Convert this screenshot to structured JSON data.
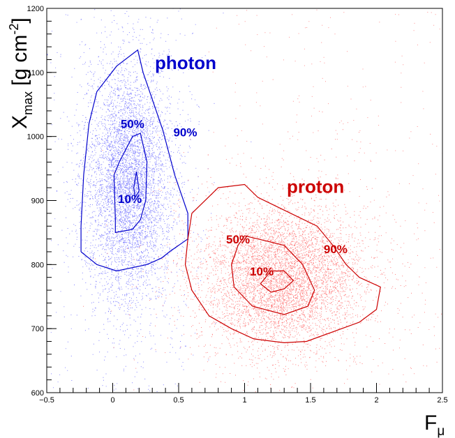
{
  "chart_data": {
    "type": "scatter",
    "title": "",
    "xlabel": "F",
    "xlabel_sub": "μ",
    "ylabel": "X",
    "ylabel_sub": "max",
    "ylabel_unit": "[g cm",
    "ylabel_unit_sup": "-2",
    "ylabel_unit_close": "]",
    "xlim": [
      -0.5,
      2.5
    ],
    "ylim": [
      600,
      1200
    ],
    "x_tick_labels": [
      "−0.5",
      "0",
      "0.5",
      "1",
      "1.5",
      "2",
      "2.5"
    ],
    "x_tick_values": [
      -0.5,
      0,
      0.5,
      1,
      1.5,
      2,
      2.5
    ],
    "y_tick_labels": [
      "600",
      "700",
      "800",
      "900",
      "1000",
      "1100",
      "1200"
    ],
    "y_tick_values": [
      600,
      700,
      800,
      900,
      1000,
      1100,
      1200
    ],
    "grid": false,
    "series": [
      {
        "name": "photon",
        "label": "photon",
        "color": "#0000cc",
        "point_color": "#8080ff",
        "center": [
          0.12,
          930
        ],
        "spread": [
          0.16,
          90
        ],
        "n_points": 5500,
        "contours": [
          {
            "level": "90%",
            "label": "90%",
            "points": [
              [
                -0.24,
                820
              ],
              [
                -0.24,
                860
              ],
              [
                -0.22,
                940
              ],
              [
                -0.18,
                1020
              ],
              [
                -0.12,
                1070
              ],
              [
                0.03,
                1110
              ],
              [
                0.19,
                1135
              ],
              [
                0.23,
                1100
              ],
              [
                0.38,
                1010
              ],
              [
                0.47,
                940
              ],
              [
                0.57,
                880
              ],
              [
                0.57,
                840
              ],
              [
                0.43,
                820
              ],
              [
                0.37,
                810
              ],
              [
                0.26,
                800
              ],
              [
                0.03,
                790
              ],
              [
                -0.12,
                800
              ],
              [
                -0.24,
                820
              ]
            ]
          },
          {
            "level": "50%",
            "label": "50%",
            "points": [
              [
                0.02,
                870
              ],
              [
                0.01,
                940
              ],
              [
                0.05,
                960
              ],
              [
                0.15,
                1000
              ],
              [
                0.21,
                1005
              ],
              [
                0.26,
                960
              ],
              [
                0.25,
                900
              ],
              [
                0.21,
                870
              ],
              [
                0.15,
                855
              ],
              [
                0.02,
                850
              ],
              [
                0.02,
                870
              ]
            ]
          },
          {
            "level": "10%",
            "label": "10%",
            "points": [
              [
                0.16,
                920
              ],
              [
                0.18,
                945
              ],
              [
                0.2,
                915
              ],
              [
                0.17,
                905
              ],
              [
                0.16,
                920
              ]
            ]
          }
        ],
        "labels_pos": {
          "series": [
            0.32,
            1105
          ],
          "90%": [
            0.46,
            1000
          ],
          "50%": [
            0.06,
            1013
          ],
          "10%": [
            0.04,
            896
          ]
        }
      },
      {
        "name": "proton",
        "label": "proton",
        "color": "#cc0000",
        "point_color": "#ff8080",
        "center": [
          1.28,
          780
        ],
        "spread": [
          0.3,
          55
        ],
        "n_points": 6000,
        "contours": [
          {
            "level": "90%",
            "label": "90%",
            "points": [
              [
                0.57,
                840
              ],
              [
                0.6,
                880
              ],
              [
                0.8,
                920
              ],
              [
                1.0,
                925
              ],
              [
                1.1,
                905
              ],
              [
                1.35,
                880
              ],
              [
                1.55,
                860
              ],
              [
                1.67,
                830
              ],
              [
                1.77,
                800
              ],
              [
                1.87,
                780
              ],
              [
                2.03,
                765
              ],
              [
                2.0,
                730
              ],
              [
                1.87,
                710
              ],
              [
                1.47,
                680
              ],
              [
                1.3,
                678
              ],
              [
                1.07,
                684
              ],
              [
                0.9,
                700
              ],
              [
                0.73,
                720
              ],
              [
                0.6,
                760
              ],
              [
                0.55,
                800
              ],
              [
                0.57,
                840
              ]
            ]
          },
          {
            "level": "50%",
            "label": "50%",
            "points": [
              [
                0.9,
                800
              ],
              [
                0.95,
                830
              ],
              [
                1.0,
                845
              ],
              [
                1.1,
                840
              ],
              [
                1.3,
                830
              ],
              [
                1.44,
                800
              ],
              [
                1.53,
                760
              ],
              [
                1.48,
                735
              ],
              [
                1.3,
                722
              ],
              [
                1.06,
                735
              ],
              [
                0.92,
                765
              ],
              [
                0.9,
                800
              ]
            ]
          },
          {
            "level": "10%",
            "label": "10%",
            "points": [
              [
                1.12,
                770
              ],
              [
                1.2,
                790
              ],
              [
                1.3,
                790
              ],
              [
                1.37,
                775
              ],
              [
                1.3,
                762
              ],
              [
                1.2,
                757
              ],
              [
                1.12,
                770
              ]
            ]
          }
        ],
        "labels_pos": {
          "series": [
            1.32,
            912
          ],
          "90%": [
            1.6,
            818
          ],
          "50%": [
            0.86,
            833
          ],
          "10%": [
            1.04,
            783
          ]
        }
      }
    ],
    "outlier_points": 500
  }
}
